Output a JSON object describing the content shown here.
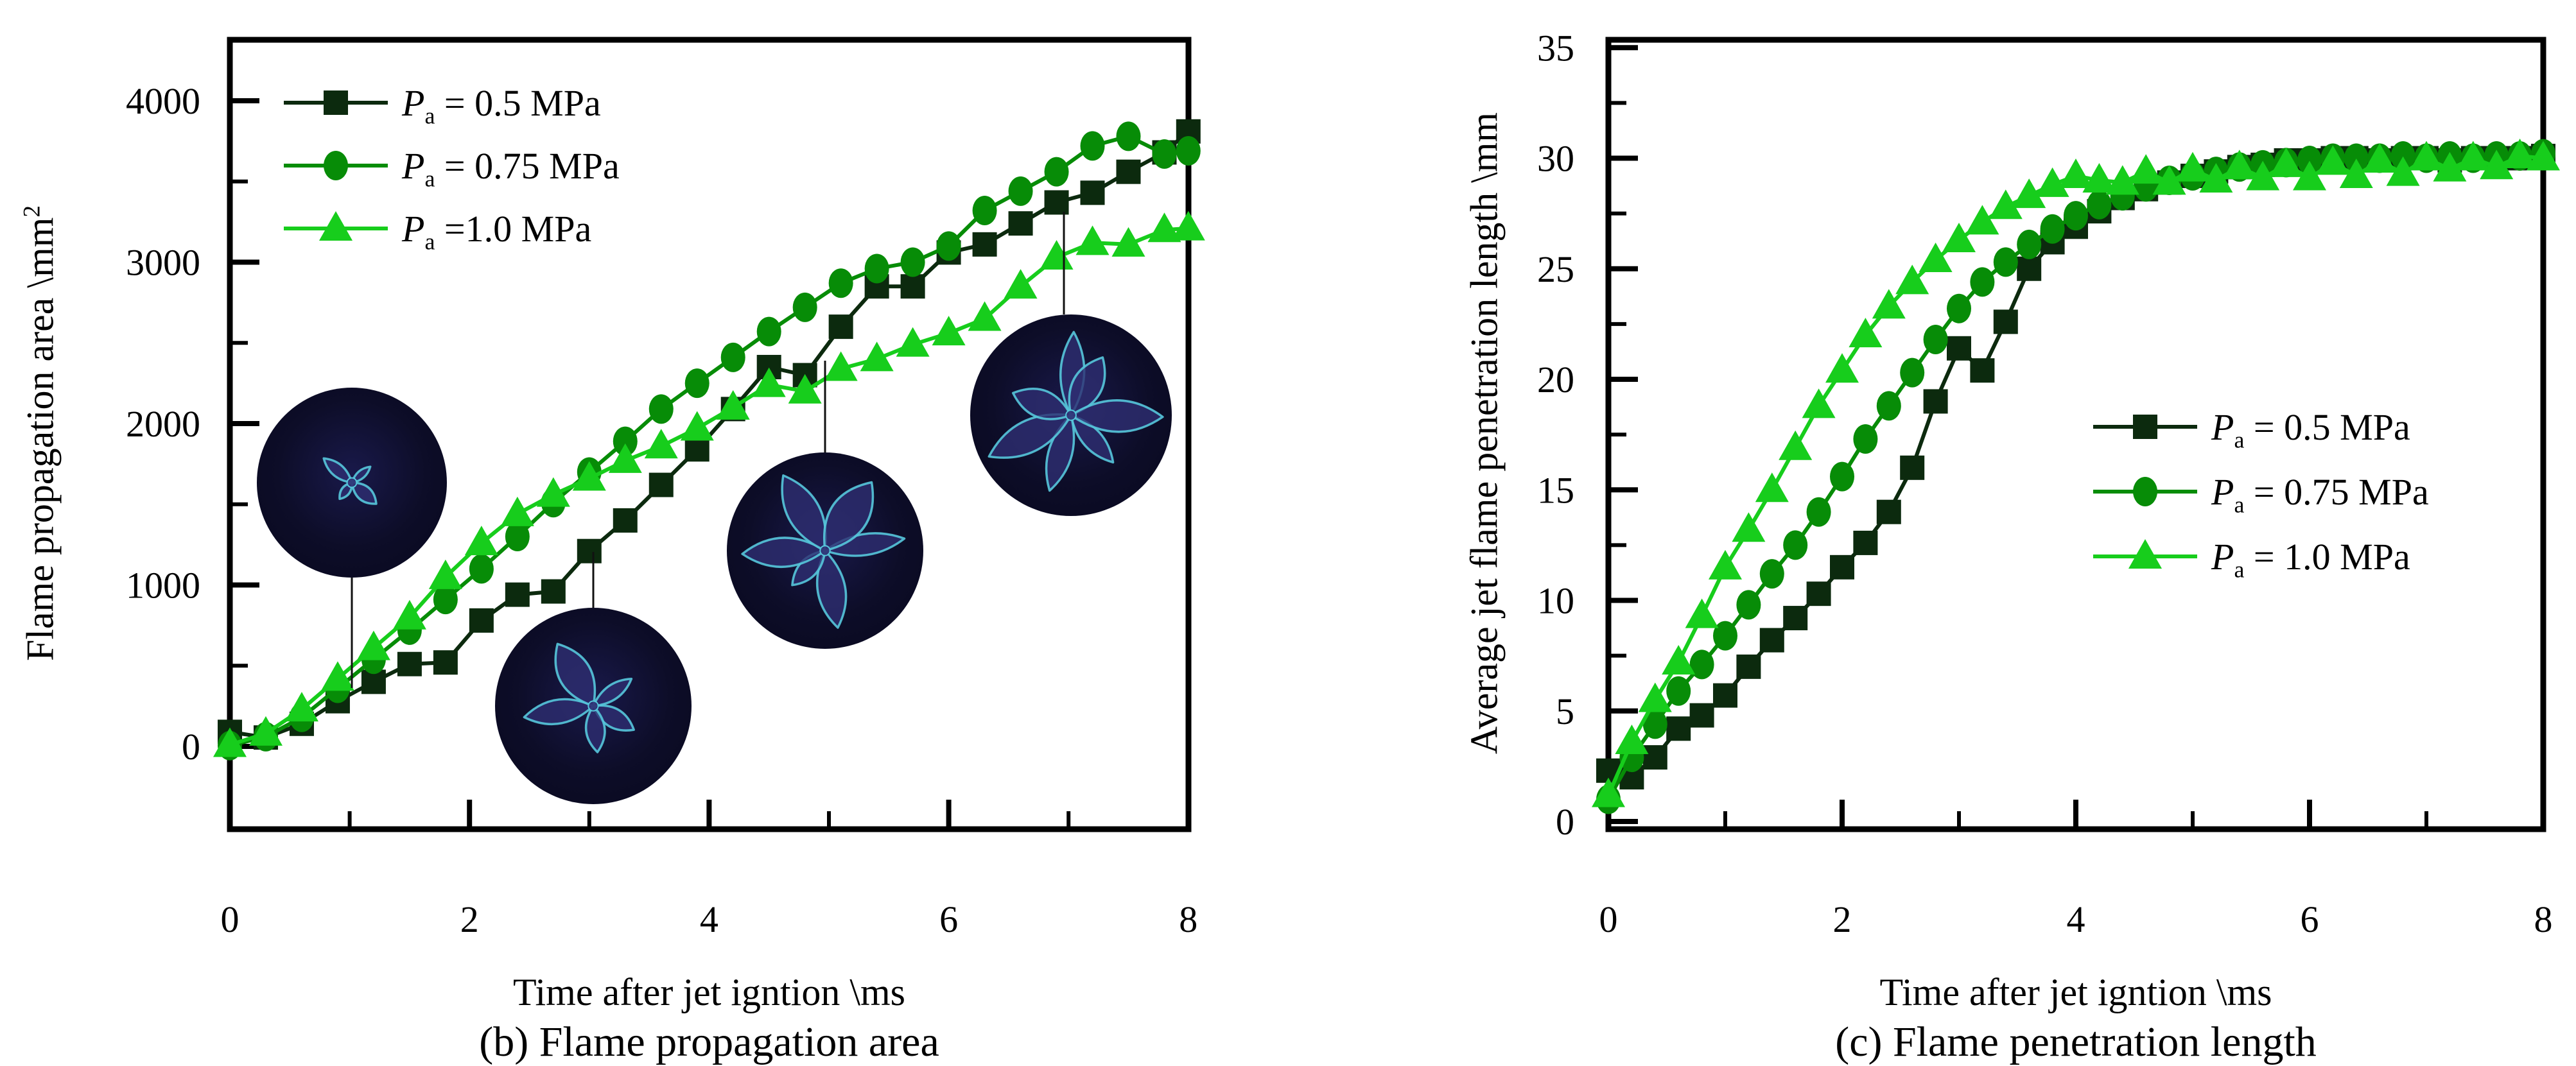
{
  "figure": {
    "background": "#ffffff"
  },
  "colors": {
    "axis": "#000000",
    "p05": "#0c2a0e",
    "p075": "#078c07",
    "p10": "#17cd1c",
    "flame_bg": "#0d0d28",
    "flame_fill": "#2e2e72",
    "flame_outline": "#56c8dc",
    "callout": "#111111"
  },
  "chart_data": [
    {
      "id": "area",
      "type": "line",
      "caption": "(b) Flame propagation area",
      "xlabel": "Time after jet igntion \\ms",
      "ylabel": {
        "text": "Flame propagation area \\mm",
        "sup": "2"
      },
      "x_axis": {
        "range": [
          0,
          8
        ],
        "major": [
          0,
          2,
          4,
          6,
          8
        ],
        "minor": [
          1,
          3,
          5,
          7
        ]
      },
      "y_axis": {
        "range": [
          0,
          4000
        ],
        "major": [
          0,
          1000,
          2000,
          3000,
          4000
        ],
        "minor": [
          500,
          1500,
          2500,
          3500
        ]
      },
      "x_values": [
        0,
        0.3,
        0.6,
        0.9,
        1.2,
        1.5,
        1.8,
        2.1,
        2.4,
        2.7,
        3,
        3.3,
        3.6,
        3.9,
        4.2,
        4.5,
        4.8,
        5.1,
        5.4,
        5.7,
        6,
        6.3,
        6.6,
        6.9,
        7.2,
        7.5,
        7.8,
        8
      ],
      "series": [
        {
          "id": "p05",
          "pressure_MPa": 0.5,
          "marker": "square",
          "color": "#0c2a0e",
          "label": {
            "p": "P",
            "sub": "a",
            "rest": " = 0.5 MPa"
          },
          "values": [
            90,
            55,
            140,
            280,
            400,
            510,
            520,
            780,
            940,
            960,
            1210,
            1400,
            1620,
            1840,
            2090,
            2350,
            2300,
            2600,
            2850,
            2850,
            3060,
            3110,
            3240,
            3370,
            3430,
            3560,
            3680,
            3810
          ]
        },
        {
          "id": "p075",
          "pressure_MPa": 0.75,
          "marker": "circle",
          "color": "#078c07",
          "label": {
            "p": "P",
            "sub": "a",
            "rest": " = 0.75 MPa"
          },
          "values": [
            5,
            60,
            180,
            360,
            540,
            720,
            910,
            1100,
            1300,
            1510,
            1700,
            1890,
            2090,
            2250,
            2410,
            2570,
            2720,
            2870,
            2960,
            3000,
            3100,
            3320,
            3440,
            3560,
            3720,
            3780,
            3670,
            3690
          ]
        },
        {
          "id": "p10",
          "pressure_MPa": 1.0,
          "marker": "triangle",
          "color": "#17cd1c",
          "label": {
            "p": "P",
            "sub": "a",
            "rest": " =1.0 MPa"
          },
          "values": [
            10,
            80,
            230,
            420,
            610,
            800,
            1050,
            1260,
            1440,
            1560,
            1660,
            1770,
            1860,
            1970,
            2100,
            2240,
            2200,
            2340,
            2400,
            2490,
            2560,
            2650,
            2850,
            3030,
            3120,
            3110,
            3200,
            3210
          ]
        }
      ],
      "insets": [
        {
          "cx": 548,
          "cy": 752,
          "r": 148,
          "petals": 4,
          "flame": 0.38,
          "rot": -0.7,
          "seed": 11,
          "line": {
            "x": 548,
            "y1": 900,
            "y2": 1072
          }
        },
        {
          "cx": 924,
          "cy": 1100,
          "r": 153,
          "petals": 5,
          "flame": 0.78,
          "rot": 0.4,
          "seed": 23,
          "line": {
            "x": 924,
            "y1": 860,
            "y2": 947
          }
        },
        {
          "cx": 1285,
          "cy": 858,
          "r": 153,
          "petals": 6,
          "flame": 0.85,
          "rot": 0.1,
          "seed": 37,
          "line": {
            "x": 1285,
            "y1": 562,
            "y2": 705
          }
        },
        {
          "cx": 1668,
          "cy": 647,
          "r": 157,
          "petals": 7,
          "flame": 0.88,
          "rot": 0.9,
          "seed": 53,
          "line": {
            "x": 1657,
            "y1": 330,
            "y2": 490
          }
        }
      ]
    },
    {
      "id": "penetration",
      "type": "line",
      "caption": "(c) Flame penetration length",
      "xlabel": "Time after jet igntion \\ms",
      "ylabel": {
        "text": "Average jet flame penetration length \\mm",
        "sup": ""
      },
      "x_axis": {
        "range": [
          0,
          8
        ],
        "major": [
          0,
          2,
          4,
          6,
          8
        ],
        "minor": [
          1,
          3,
          5,
          7
        ]
      },
      "y_axis": {
        "range": [
          0,
          35
        ],
        "major": [
          0,
          5,
          10,
          15,
          20,
          25,
          30,
          35
        ],
        "minor": [
          2.5,
          7.5,
          12.5,
          17.5,
          22.5,
          27.5,
          32.5
        ]
      },
      "x_values": [
        0,
        0.2,
        0.4,
        0.6,
        0.8,
        1,
        1.2,
        1.4,
        1.6,
        1.8,
        2,
        2.2,
        2.4,
        2.6,
        2.8,
        3,
        3.2,
        3.4,
        3.6,
        3.8,
        4,
        4.2,
        4.4,
        4.6,
        4.8,
        5,
        5.2,
        5.4,
        5.6,
        5.8,
        6,
        6.2,
        6.4,
        6.6,
        6.8,
        7,
        7.2,
        7.4,
        7.6,
        7.8,
        8
      ],
      "series": [
        {
          "id": "p05",
          "pressure_MPa": 0.5,
          "marker": "square",
          "color": "#0c2a0e",
          "label": {
            "p": "P",
            "sub": "a",
            "rest": " = 0.5 MPa"
          },
          "values": [
            2.3,
            2.0,
            2.9,
            4.2,
            4.8,
            5.7,
            7.0,
            8.2,
            9.2,
            10.3,
            11.5,
            12.6,
            14.0,
            16.0,
            19.0,
            21.4,
            20.4,
            22.6,
            25.0,
            26.2,
            26.9,
            27.6,
            28.2,
            28.6,
            28.9,
            29.2,
            29.4,
            29.6,
            29.7,
            29.9,
            29.9,
            30.0,
            30.0,
            29.9,
            30.0,
            30.0,
            29.9,
            30.0,
            30.0,
            30.0,
            30.1
          ]
        },
        {
          "id": "p075",
          "pressure_MPa": 0.75,
          "marker": "circle",
          "color": "#078c07",
          "label": {
            "p": "P",
            "sub": "a",
            "rest": " = 0.75 MPa"
          },
          "values": [
            1.0,
            2.9,
            4.4,
            5.9,
            7.1,
            8.4,
            9.8,
            11.2,
            12.5,
            14.0,
            15.6,
            17.3,
            18.8,
            20.3,
            21.8,
            23.2,
            24.4,
            25.3,
            26.1,
            26.8,
            27.4,
            27.9,
            28.3,
            28.7,
            29.0,
            29.2,
            29.4,
            29.6,
            29.7,
            29.8,
            29.9,
            30.0,
            30.0,
            30.0,
            30.1,
            30.0,
            30.1,
            30.0,
            30.1,
            30.1,
            30.2
          ]
        },
        {
          "id": "p10",
          "pressure_MPa": 1.0,
          "marker": "triangle",
          "color": "#17cd1c",
          "label": {
            "p": "P",
            "sub": "a",
            "rest": " = 1.0 MPa"
          },
          "values": [
            1.2,
            3.6,
            5.5,
            7.2,
            9.3,
            11.5,
            13.2,
            15.0,
            16.9,
            18.8,
            20.4,
            22.0,
            23.3,
            24.4,
            25.4,
            26.3,
            27.1,
            27.8,
            28.3,
            28.8,
            29.2,
            29.0,
            28.9,
            29.4,
            28.9,
            29.5,
            29.0,
            29.6,
            29.1,
            29.7,
            29.1,
            29.8,
            29.2,
            29.9,
            29.3,
            30.0,
            29.5,
            30.0,
            29.6,
            30.1,
            30.0
          ]
        }
      ],
      "insets": []
    }
  ]
}
